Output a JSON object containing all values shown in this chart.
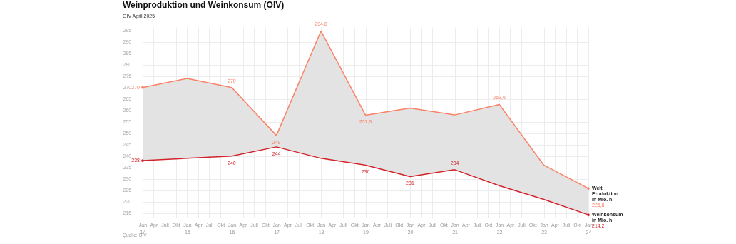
{
  "chart_data": {
    "type": "line",
    "title": "Weinproduktion und Weinkonsum (OIV)",
    "subtitle": "OIV April 2025",
    "annotations": [
      "Quelle: OIV"
    ],
    "x": [
      "2014",
      "2015",
      "2016",
      "2017",
      "2018",
      "2019",
      "2020",
      "2021",
      "2022",
      "2023",
      "2024"
    ],
    "series": [
      {
        "name": "Welt Produktion in Mio. hl",
        "color": "#fa8066",
        "values": [
          270,
          274,
          270,
          249,
          294.8,
          257.9,
          261,
          258,
          262.6,
          236,
          225.8
        ],
        "value_labels": [
          "270",
          null,
          "270",
          "249",
          "294,8",
          "257,9",
          null,
          null,
          "262,6",
          null,
          "225,8"
        ],
        "lower": [
          238,
          239,
          240,
          244,
          239,
          236,
          231,
          234,
          227,
          221,
          214.2
        ],
        "upper": [
          270,
          274,
          270,
          249,
          294.8,
          257.9,
          261,
          258,
          262.6,
          236,
          225.8
        ]
      },
      {
        "name": "Weinkonsum in Mio. hl",
        "color": "#d2232a",
        "values": [
          238,
          239,
          240,
          244,
          239,
          236,
          231,
          234,
          227,
          221,
          214.2
        ],
        "value_labels": [
          "238",
          null,
          "240",
          "244",
          null,
          "236",
          "231",
          "234",
          null,
          null,
          "214,2"
        ]
      }
    ],
    "ylim": [
      213,
      296.5
    ],
    "yticks": [
      215,
      220,
      225,
      230,
      235,
      240,
      245,
      250,
      255,
      260,
      265,
      270,
      275,
      280,
      285,
      290,
      295
    ],
    "xlim": [
      "2014",
      "2024"
    ],
    "xticks": [
      {
        "value": "2014-01",
        "label": "Jan\n14"
      },
      {
        "value": "2014-04",
        "label": "Apr"
      },
      {
        "value": "2014-07",
        "label": "Juli"
      },
      {
        "value": "2014-10",
        "label": "Okt"
      },
      {
        "value": "2015-01",
        "label": "Jan\n15"
      },
      {
        "value": "2015-04",
        "label": "Apr"
      },
      {
        "value": "2015-07",
        "label": "Juli"
      },
      {
        "value": "2015-10",
        "label": "Okt"
      },
      {
        "value": "2016-01",
        "label": "Jan\n16"
      },
      {
        "value": "2016-04",
        "label": "Apr"
      },
      {
        "value": "2016-07",
        "label": "Juli"
      },
      {
        "value": "2016-10",
        "label": "Okt"
      },
      {
        "value": "2017-01",
        "label": "Jan\n17"
      },
      {
        "value": "2017-04",
        "label": "Apr"
      },
      {
        "value": "2017-07",
        "label": "Juli"
      },
      {
        "value": "2017-10",
        "label": "Okt"
      },
      {
        "value": "2018-01",
        "label": "Jan\n18"
      },
      {
        "value": "2018-04",
        "label": "Apr"
      },
      {
        "value": "2018-07",
        "label": "Juli"
      },
      {
        "value": "2018-10",
        "label": "Okt"
      },
      {
        "value": "2019-01",
        "label": "Jan\n19"
      },
      {
        "value": "2019-04",
        "label": "Apr"
      },
      {
        "value": "2019-07",
        "label": "Juli"
      },
      {
        "value": "2019-10",
        "label": "Okt"
      },
      {
        "value": "2020-01",
        "label": "Jan\n20"
      },
      {
        "value": "2020-04",
        "label": "Apr"
      },
      {
        "value": "2020-07",
        "label": "Juli"
      },
      {
        "value": "2020-10",
        "label": "Okt"
      },
      {
        "value": "2021-01",
        "label": "Jan\n21"
      },
      {
        "value": "2021-04",
        "label": "Apr"
      },
      {
        "value": "2021-07",
        "label": "Juli"
      },
      {
        "value": "2021-10",
        "label": "Okt"
      },
      {
        "value": "2022-01",
        "label": "Jan\n22"
      },
      {
        "value": "2022-04",
        "label": "Apr"
      },
      {
        "value": "2022-07",
        "label": "Juli"
      },
      {
        "value": "2022-10",
        "label": "Okt"
      },
      {
        "value": "2023-01",
        "label": "Jan\n23"
      },
      {
        "value": "2023-04",
        "label": "Apr"
      },
      {
        "value": "2023-07",
        "label": "Juli"
      },
      {
        "value": "2023-10",
        "label": "Okt"
      },
      {
        "value": "2024-01",
        "label": "Jan\n24"
      }
    ],
    "grid": true,
    "line_style": "solid",
    "legend": false
  }
}
